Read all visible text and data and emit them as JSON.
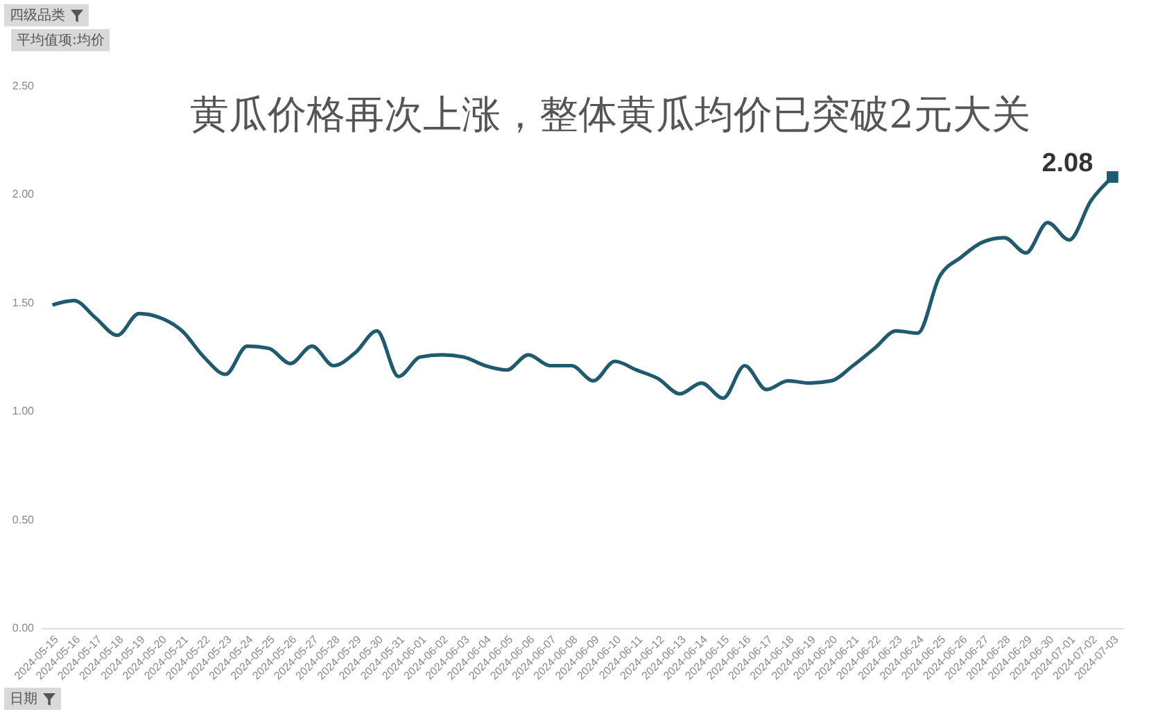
{
  "chart_data": {
    "type": "line",
    "title": "黄瓜价格再次上涨，整体黄瓜均价已突破2元大关",
    "xlabel": "日期",
    "ylabel": "平均值项:均价",
    "annotations": [
      "四级品类"
    ],
    "categories": [
      "2024-05-15",
      "2024-05-16",
      "2024-05-17",
      "2024-05-18",
      "2024-05-19",
      "2024-05-20",
      "2024-05-21",
      "2024-05-22",
      "2024-05-23",
      "2024-05-24",
      "2024-05-25",
      "2024-05-26",
      "2024-05-27",
      "2024-05-28",
      "2024-05-29",
      "2024-05-30",
      "2024-05-31",
      "2024-06-01",
      "2024-06-02",
      "2024-06-03",
      "2024-06-04",
      "2024-06-05",
      "2024-06-06",
      "2024-06-07",
      "2024-06-08",
      "2024-06-09",
      "2024-06-10",
      "2024-06-11",
      "2024-06-12",
      "2024-06-13",
      "2024-06-14",
      "2024-06-15",
      "2024-06-16",
      "2024-06-17",
      "2024-06-18",
      "2024-06-19",
      "2024-06-20",
      "2024-06-21",
      "2024-06-22",
      "2024-06-23",
      "2024-06-24",
      "2024-06-25",
      "2024-06-26",
      "2024-06-27",
      "2024-06-28",
      "2024-06-29",
      "2024-06-30",
      "2024-07-01",
      "2024-07-02",
      "2024-07-03"
    ],
    "series": [
      {
        "color": "#1f5a6e",
        "values": [
          1.49,
          1.51,
          1.43,
          1.35,
          1.45,
          1.43,
          1.37,
          1.25,
          1.17,
          1.3,
          1.29,
          1.22,
          1.3,
          1.21,
          1.27,
          1.37,
          1.16,
          1.25,
          1.26,
          1.25,
          1.21,
          1.19,
          1.26,
          1.21,
          1.21,
          1.14,
          1.23,
          1.19,
          1.15,
          1.08,
          1.13,
          1.06,
          1.21,
          1.1,
          1.14,
          1.13,
          1.14,
          1.21,
          1.29,
          1.37,
          1.36,
          1.62,
          1.71,
          1.78,
          1.8,
          1.73,
          1.87,
          1.79,
          1.97,
          2.08
        ],
        "value_labels": [
          null,
          null,
          null,
          null,
          null,
          null,
          null,
          null,
          null,
          null,
          null,
          null,
          null,
          null,
          null,
          null,
          null,
          null,
          null,
          null,
          null,
          null,
          null,
          null,
          null,
          null,
          null,
          null,
          null,
          null,
          null,
          null,
          null,
          null,
          null,
          null,
          null,
          null,
          null,
          null,
          null,
          null,
          null,
          null,
          null,
          null,
          null,
          null,
          null,
          "2.08"
        ]
      }
    ],
    "ylim": [
      0,
      2.5
    ],
    "yticks": [
      {
        "value": 0,
        "label": "0.00"
      },
      {
        "value": 0.5,
        "label": "0.50"
      },
      {
        "value": 1,
        "label": "1.00"
      },
      {
        "value": 1.5,
        "label": "1.50"
      },
      {
        "value": 2,
        "label": "2.00"
      },
      {
        "value": 2.5,
        "label": "2.50"
      }
    ],
    "grid": false
  }
}
